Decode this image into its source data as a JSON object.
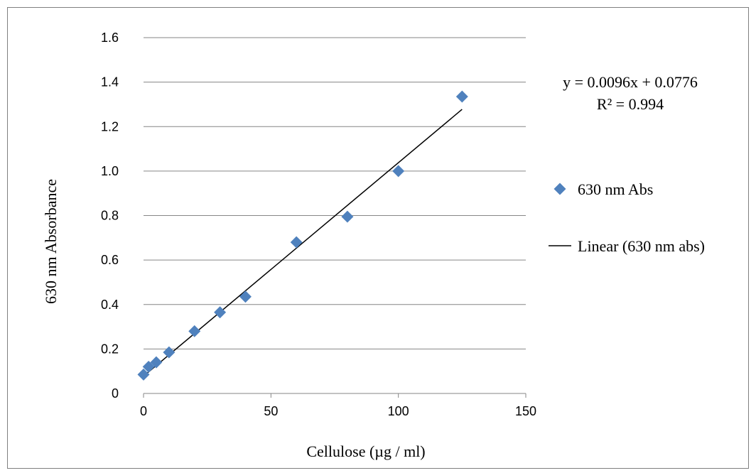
{
  "chart_data": {
    "type": "scatter",
    "xlabel": "Cellulose (µg / ml)",
    "ylabel": "630 nm Absorbance",
    "xlim": [
      0,
      150
    ],
    "ylim": [
      0,
      1.6
    ],
    "x_ticks": [
      "0",
      "50",
      "100",
      "150"
    ],
    "y_ticks": [
      "0",
      "0.2",
      "0.4",
      "0.6",
      "0.8",
      "1.0",
      "1.2",
      "1.4",
      "1.6"
    ],
    "grid": "horizontal",
    "legend_position": "right",
    "series": [
      {
        "name": "630 nm Abs",
        "marker": "diamond",
        "color": "#4f81bd",
        "x": [
          0,
          2,
          5,
          10,
          20,
          30,
          40,
          60,
          80,
          100,
          125
        ],
        "y": [
          0.085,
          0.12,
          0.14,
          0.185,
          0.28,
          0.365,
          0.435,
          0.68,
          0.795,
          1.0,
          1.335
        ]
      }
    ],
    "trendline": {
      "name": "Linear (630 nm abs)",
      "slope": 0.0096,
      "intercept": 0.0776,
      "x_range": [
        0,
        125
      ],
      "color": "#000000",
      "equation": "y = 0.0096x + 0.0776",
      "r_squared": "R² = 0.994"
    }
  }
}
